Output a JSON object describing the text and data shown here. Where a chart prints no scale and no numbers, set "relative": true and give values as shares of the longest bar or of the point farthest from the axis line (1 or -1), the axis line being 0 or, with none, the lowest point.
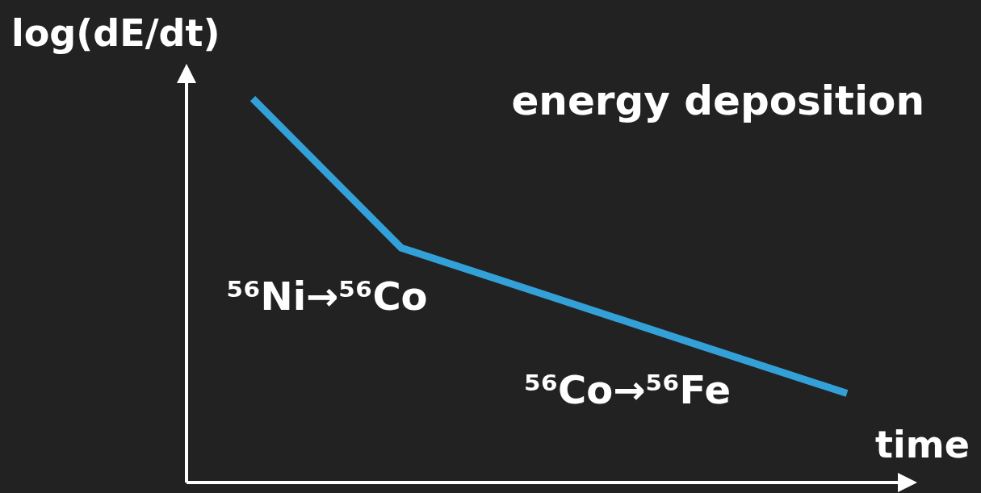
{
  "chart_data": {
    "type": "line",
    "title": "energy deposition",
    "xlabel": "time",
    "ylabel": "log(dE/dt)",
    "relative": true,
    "categories": [
      null,
      null,
      null,
      null,
      null
    ],
    "series": [
      {
        "color": "#33a0d8",
        "values": [
          1,
          0.611,
          0.485,
          0.358,
          0.232
        ]
      }
    ],
    "annotations": [
      "⁵⁶Ni→⁵⁶Co",
      "⁵⁶Co→⁵⁶Fe"
    ],
    "legend": false
  }
}
